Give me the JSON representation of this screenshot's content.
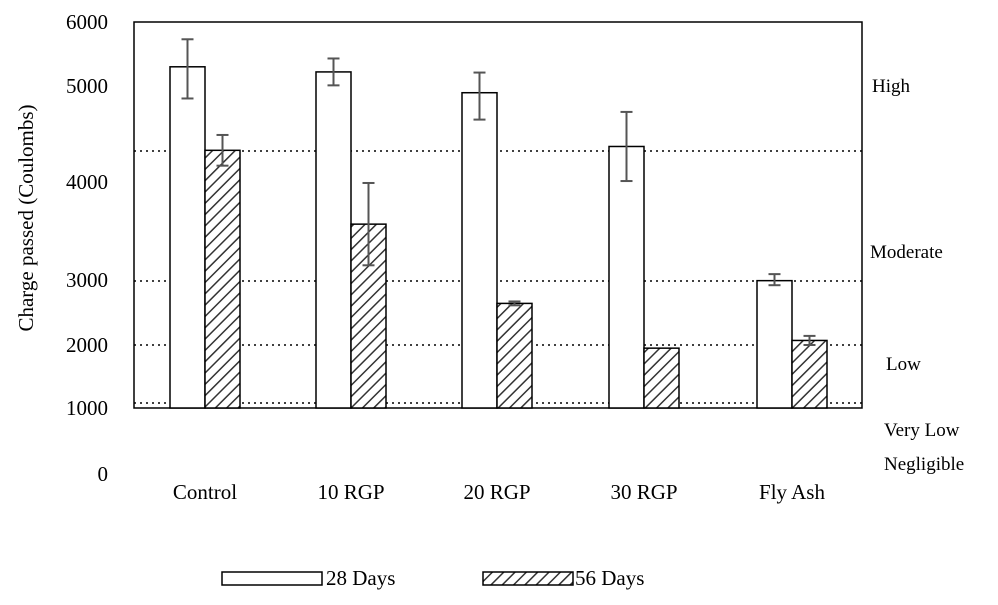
{
  "chart_data": {
    "type": "bar",
    "title": "",
    "xlabel": "",
    "ylabel": "Charge passed (Coulombs)",
    "categories": [
      "Control",
      "10 RGP",
      "20 RGP",
      "30 RGP",
      "Fly Ash"
    ],
    "y_tick_labels": [
      "0",
      "1000",
      "2000",
      "3000",
      "4000",
      "5000",
      "6000"
    ],
    "series": [
      {
        "name": "28 Days",
        "values": [
          5300,
          5220,
          4930,
          4370,
          2990
        ],
        "errors": [
          430,
          210,
          280,
          360,
          70
        ],
        "fill": "#ffffff",
        "pattern": "none"
      },
      {
        "name": "56 Days",
        "values": [
          4330,
          3570,
          2640,
          1950,
          2070
        ],
        "errors": [
          160,
          420,
          30,
          0,
          70
        ],
        "fill": "#ffffff",
        "pattern": "diagonal-hatch"
      }
    ],
    "zones": [
      {
        "label": "High",
        "threshold": 4000
      },
      {
        "label": "Moderate",
        "threshold": 2000
      },
      {
        "label": "Low",
        "threshold": 1000
      },
      {
        "label": "Very Low",
        "threshold": 100
      },
      {
        "label": "Negligible",
        "threshold": 0
      }
    ],
    "legend": {
      "position": "bottom",
      "entries": [
        "28 Days",
        "56 Days"
      ]
    },
    "grid": false,
    "colors": {
      "axis": "#000000",
      "bar_stroke": "#000000",
      "error_bar": "#555555",
      "hatch": "#333333"
    }
  }
}
